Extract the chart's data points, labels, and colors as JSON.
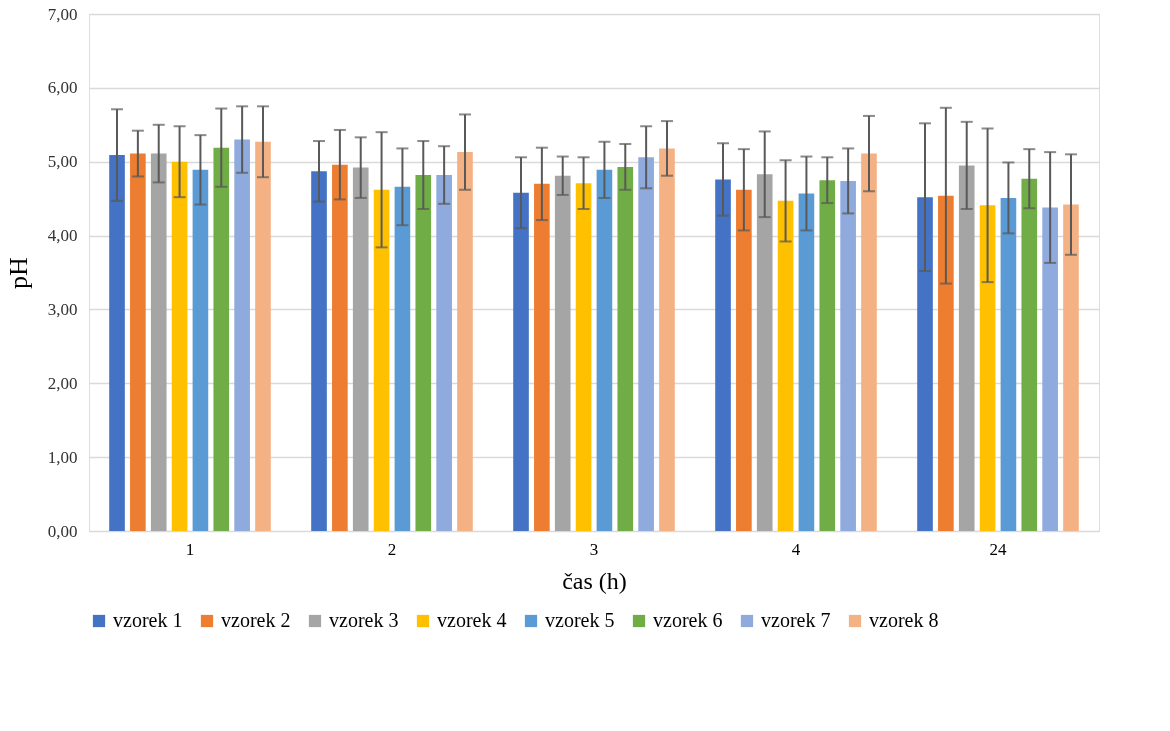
{
  "chart_data": {
    "type": "bar",
    "xlabel": "čas (h)",
    "ylabel": "pH",
    "categories": [
      "1",
      "2",
      "3",
      "4",
      "24"
    ],
    "series": [
      {
        "name": "vzorek 1",
        "color": "#4472c4",
        "values": [
          5.09,
          4.87,
          4.58,
          4.76,
          4.52
        ],
        "errors": [
          0.62,
          0.41,
          0.48,
          0.49,
          1.0
        ]
      },
      {
        "name": "vzorek 2",
        "color": "#ed7d31",
        "values": [
          5.11,
          4.96,
          4.7,
          4.62,
          4.54
        ],
        "errors": [
          0.31,
          0.47,
          0.49,
          0.55,
          1.19
        ]
      },
      {
        "name": "vzorek 3",
        "color": "#a5a5a5",
        "values": [
          5.11,
          4.92,
          4.81,
          4.83,
          4.95
        ],
        "errors": [
          0.39,
          0.41,
          0.26,
          0.58,
          0.59
        ]
      },
      {
        "name": "vzorek 4",
        "color": "#ffc000",
        "values": [
          5.0,
          4.62,
          4.71,
          4.47,
          4.41
        ],
        "errors": [
          0.48,
          0.78,
          0.35,
          0.55,
          1.04
        ]
      },
      {
        "name": "vzorek 5",
        "color": "#5b9bd5",
        "values": [
          4.89,
          4.66,
          4.89,
          4.57,
          4.51
        ],
        "errors": [
          0.47,
          0.52,
          0.38,
          0.5,
          0.48
        ]
      },
      {
        "name": "vzorek 6",
        "color": "#70ad47",
        "values": [
          5.19,
          4.82,
          4.93,
          4.75,
          4.77
        ],
        "errors": [
          0.53,
          0.46,
          0.31,
          0.31,
          0.4
        ]
      },
      {
        "name": "vzorek 7",
        "color": "#8faadc",
        "values": [
          5.3,
          4.82,
          5.06,
          4.74,
          4.38
        ],
        "errors": [
          0.45,
          0.39,
          0.42,
          0.44,
          0.75
        ]
      },
      {
        "name": "vzorek 8",
        "color": "#f4b183",
        "values": [
          5.27,
          5.13,
          5.18,
          5.11,
          4.42
        ],
        "errors": [
          0.48,
          0.51,
          0.37,
          0.51,
          0.68
        ]
      }
    ],
    "ylim": [
      0,
      7
    ],
    "yticks": [
      {
        "value": 0,
        "label": "0,00"
      },
      {
        "value": 1,
        "label": "1,00"
      },
      {
        "value": 2,
        "label": "2,00"
      },
      {
        "value": 3,
        "label": "3,00"
      },
      {
        "value": 4,
        "label": "4,00"
      },
      {
        "value": 5,
        "label": "5,00"
      },
      {
        "value": 6,
        "label": "6,00"
      },
      {
        "value": 7,
        "label": "7,00"
      }
    ],
    "grid": "y",
    "legend": "bottom"
  }
}
